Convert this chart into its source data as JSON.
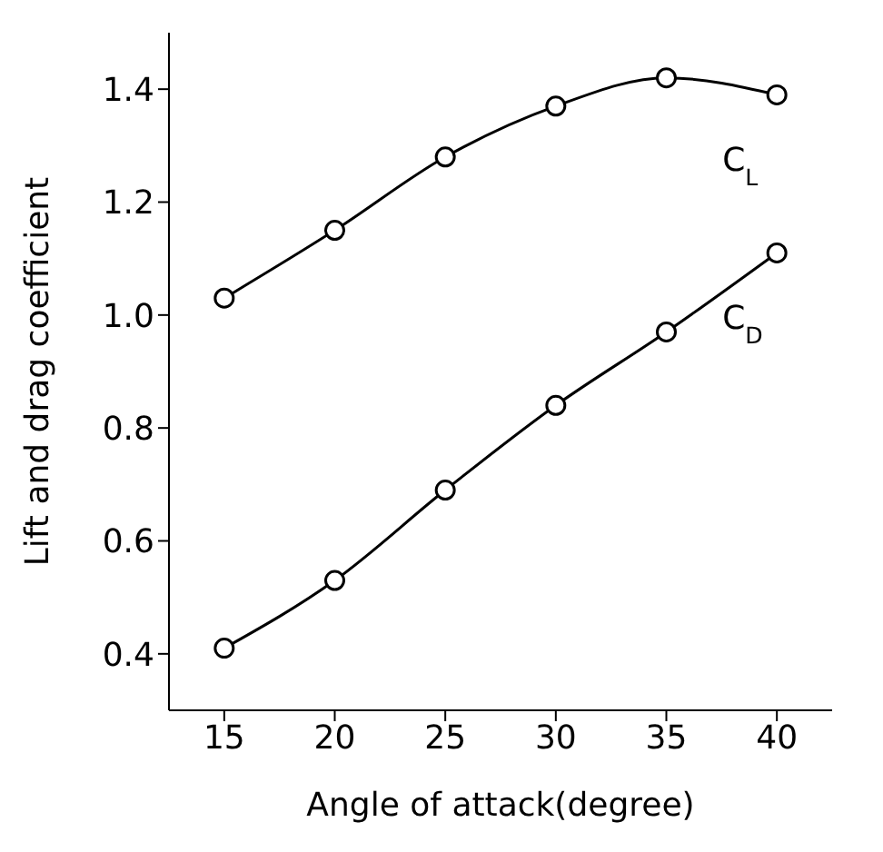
{
  "chart_data": {
    "type": "line",
    "xlabel": "Angle of attack(degree)",
    "ylabel": "Lift and drag coefficient",
    "x": [
      15,
      20,
      25,
      30,
      35,
      40
    ],
    "series": [
      {
        "name": "C$_{L}$",
        "color": "#000000",
        "values": [
          1.03,
          1.15,
          1.28,
          1.37,
          1.42,
          1.39
        ]
      },
      {
        "name": "C$_{D}$",
        "color": "#000000",
        "values": [
          0.41,
          0.53,
          0.69,
          0.84,
          0.97,
          1.11
        ]
      }
    ],
    "xlim": [
      12.5,
      42.5
    ],
    "xticks": [
      15,
      20,
      25,
      30,
      35,
      40
    ],
    "ylim": [
      0.3,
      1.5
    ],
    "yticks": [
      {
        "value": 0.4,
        "label": "0.4"
      },
      {
        "value": 0.6,
        "label": "0.6"
      },
      {
        "value": 0.8,
        "label": "0.8"
      },
      {
        "value": 1.0,
        "label": "1.0"
      },
      {
        "value": 1.2,
        "label": "1.2"
      },
      {
        "value": 1.4,
        "label": "1.4"
      }
    ],
    "grid": false,
    "legend": false,
    "marker": "circle",
    "line_style": "solid"
  }
}
